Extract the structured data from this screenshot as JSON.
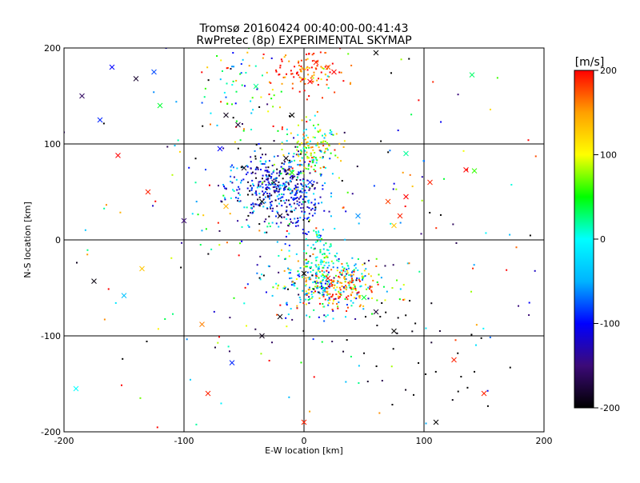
{
  "chart_data": {
    "type": "scatter",
    "title": "Tromsø 20160424 00:40:00-00:41:43",
    "subtitle": "RwPretec (8p) EXPERIMENTAL SKYMAP",
    "xlabel": "E-W location [km]",
    "ylabel": "N-S location [km]",
    "xlim": [
      -200,
      200
    ],
    "ylim": [
      -200,
      200
    ],
    "x_ticks": [
      "-200",
      "-100",
      "0",
      "100",
      "200"
    ],
    "y_ticks": [
      "-200",
      "-100",
      "0",
      "100",
      "200"
    ],
    "grid": true,
    "colorbar": {
      "label": "[m/s]",
      "range": [
        -200,
        200
      ],
      "ticks": [
        "200",
        "100",
        "0",
        "-100",
        "-200"
      ],
      "colormap": [
        "#000000",
        "#3c0a78",
        "#0000ff",
        "#00b4ff",
        "#00ffff",
        "#00ff00",
        "#ffff00",
        "#ffa000",
        "#ff0000"
      ]
    },
    "clusters": [
      {
        "x": -25,
        "y": 55,
        "sx": 20,
        "sy": 18,
        "n": 420,
        "v": -110,
        "sv": 60
      },
      {
        "x": 5,
        "y": 95,
        "sx": 12,
        "sy": 14,
        "n": 150,
        "v": 60,
        "sv": 70
      },
      {
        "x": 0,
        "y": 175,
        "sx": 18,
        "sy": 12,
        "n": 120,
        "v": 180,
        "sv": 35
      },
      {
        "x": -50,
        "y": 150,
        "sx": 20,
        "sy": 25,
        "n": 60,
        "v": 0,
        "sv": 120
      },
      {
        "x": 15,
        "y": -45,
        "sx": 25,
        "sy": 15,
        "n": 300,
        "v": -20,
        "sv": 90
      },
      {
        "x": 30,
        "y": -50,
        "sx": 15,
        "sy": 12,
        "n": 120,
        "v": 170,
        "sv": 40
      },
      {
        "x": 15,
        "y": -15,
        "sx": 8,
        "sy": 15,
        "n": 80,
        "v": 10,
        "sv": 40
      },
      {
        "x": 0,
        "y": 30,
        "sx": 8,
        "sy": 15,
        "n": 60,
        "v": -100,
        "sv": 40
      },
      {
        "x": 90,
        "y": -130,
        "sx": 30,
        "sy": 40,
        "n": 40,
        "v": -200,
        "sv": 20
      },
      {
        "x": 0,
        "y": 0,
        "sx": 110,
        "sy": 110,
        "n": 260,
        "v": 0,
        "sv": 150
      }
    ],
    "crosses": [
      [
        -175,
        -43,
        -195
      ],
      [
        -150,
        -58,
        -40
      ],
      [
        -135,
        -30,
        130
      ],
      [
        -190,
        -155,
        0
      ],
      [
        -80,
        -160,
        190
      ],
      [
        -85,
        -88,
        160
      ],
      [
        -60,
        -128,
        -90
      ],
      [
        -35,
        -100,
        -190
      ],
      [
        -20,
        -80,
        -195
      ],
      [
        0,
        -190,
        190
      ],
      [
        60,
        -75,
        -180
      ],
      [
        75,
        -95,
        -200
      ],
      [
        125,
        -125,
        190
      ],
      [
        150,
        -160,
        190
      ],
      [
        110,
        -190,
        -200
      ],
      [
        -170,
        125,
        -90
      ],
      [
        -160,
        180,
        -100
      ],
      [
        -185,
        150,
        -160
      ],
      [
        -125,
        175,
        -80
      ],
      [
        -140,
        168,
        -180
      ],
      [
        -155,
        88,
        200
      ],
      [
        -130,
        50,
        190
      ],
      [
        -100,
        20,
        -150
      ],
      [
        -65,
        35,
        140
      ],
      [
        -65,
        130,
        -190
      ],
      [
        -55,
        120,
        -180
      ],
      [
        -70,
        95,
        -100
      ],
      [
        -40,
        160,
        20
      ],
      [
        -10,
        130,
        -200
      ],
      [
        5,
        165,
        200
      ],
      [
        10,
        185,
        190
      ],
      [
        20,
        180,
        170
      ],
      [
        25,
        175,
        200
      ],
      [
        60,
        195,
        -200
      ],
      [
        85,
        90,
        20
      ],
      [
        80,
        25,
        190
      ],
      [
        75,
        15,
        130
      ],
      [
        70,
        40,
        180
      ],
      [
        85,
        45,
        200
      ],
      [
        105,
        60,
        190
      ],
      [
        135,
        73,
        200
      ],
      [
        142,
        72,
        60
      ],
      [
        140,
        172,
        30
      ],
      [
        -120,
        140,
        40
      ],
      [
        -50,
        75,
        -190
      ],
      [
        -35,
        40,
        -200
      ],
      [
        -15,
        85,
        -195
      ],
      [
        -25,
        60,
        -170
      ],
      [
        -10,
        70,
        60
      ],
      [
        5,
        60,
        -90
      ],
      [
        50,
        -60,
        40
      ],
      [
        20,
        -40,
        190
      ],
      [
        0,
        -35,
        -200
      ],
      [
        -20,
        25,
        -190
      ],
      [
        45,
        25,
        -60
      ]
    ]
  }
}
